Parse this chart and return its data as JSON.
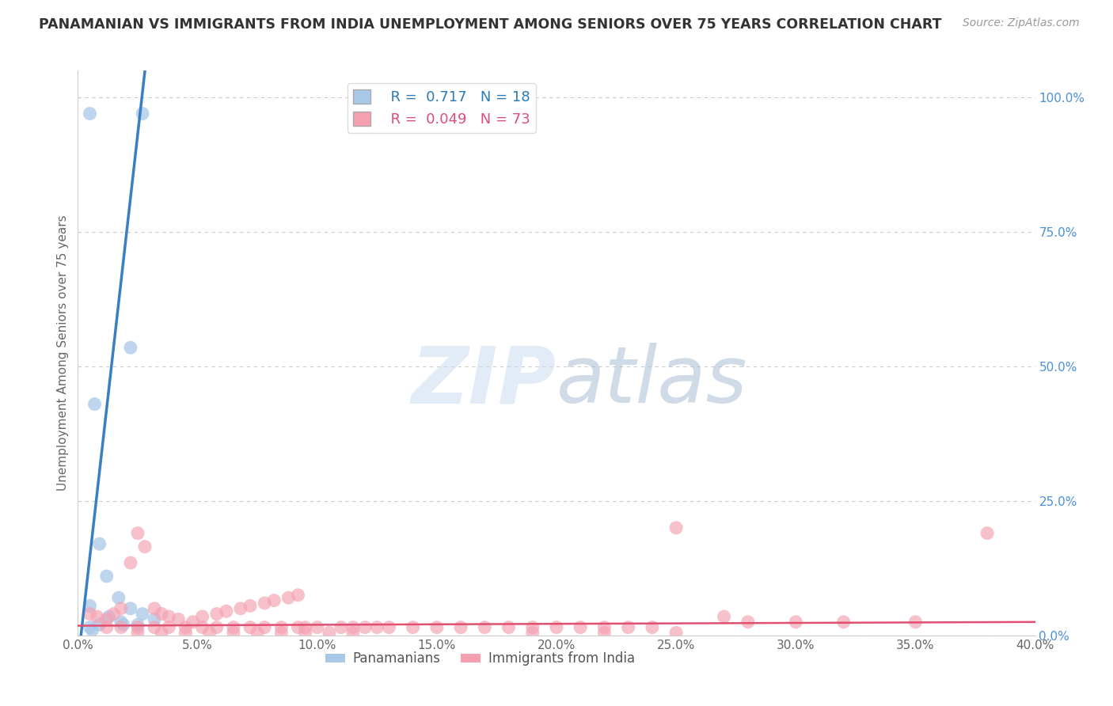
{
  "title": "PANAMANIAN VS IMMIGRANTS FROM INDIA UNEMPLOYMENT AMONG SENIORS OVER 75 YEARS CORRELATION CHART",
  "source": "Source: ZipAtlas.com",
  "ylabel": "Unemployment Among Seniors over 75 years",
  "xlim": [
    0.0,
    0.4
  ],
  "ylim": [
    0.0,
    1.05
  ],
  "xtick_vals": [
    0.0,
    0.05,
    0.1,
    0.15,
    0.2,
    0.25,
    0.3,
    0.35,
    0.4
  ],
  "ytick_right_vals": [
    0.0,
    0.25,
    0.5,
    0.75,
    1.0
  ],
  "blue_scatter_x": [
    0.022,
    0.027,
    0.005,
    0.005,
    0.009,
    0.012,
    0.017,
    0.022,
    0.027,
    0.032,
    0.009,
    0.005,
    0.006,
    0.007,
    0.013,
    0.018,
    0.019,
    0.025
  ],
  "blue_scatter_y": [
    0.535,
    0.97,
    0.97,
    0.055,
    0.17,
    0.11,
    0.07,
    0.05,
    0.04,
    0.03,
    0.02,
    0.015,
    0.01,
    0.43,
    0.035,
    0.025,
    0.02,
    0.02
  ],
  "pink_scatter_x": [
    0.005,
    0.008,
    0.012,
    0.015,
    0.018,
    0.022,
    0.025,
    0.028,
    0.032,
    0.035,
    0.038,
    0.042,
    0.048,
    0.052,
    0.058,
    0.062,
    0.068,
    0.072,
    0.078,
    0.082,
    0.088,
    0.092,
    0.012,
    0.018,
    0.025,
    0.032,
    0.038,
    0.045,
    0.052,
    0.058,
    0.065,
    0.072,
    0.078,
    0.085,
    0.092,
    0.095,
    0.1,
    0.11,
    0.115,
    0.12,
    0.125,
    0.13,
    0.14,
    0.15,
    0.16,
    0.17,
    0.18,
    0.19,
    0.2,
    0.21,
    0.22,
    0.23,
    0.24,
    0.25,
    0.27,
    0.28,
    0.3,
    0.32,
    0.35,
    0.38,
    0.025,
    0.035,
    0.045,
    0.055,
    0.065,
    0.075,
    0.085,
    0.095,
    0.105,
    0.115,
    0.19,
    0.22,
    0.25
  ],
  "pink_scatter_y": [
    0.04,
    0.035,
    0.03,
    0.04,
    0.05,
    0.135,
    0.19,
    0.165,
    0.05,
    0.04,
    0.035,
    0.03,
    0.025,
    0.035,
    0.04,
    0.045,
    0.05,
    0.055,
    0.06,
    0.065,
    0.07,
    0.075,
    0.015,
    0.015,
    0.015,
    0.015,
    0.015,
    0.015,
    0.015,
    0.015,
    0.015,
    0.015,
    0.015,
    0.015,
    0.015,
    0.015,
    0.015,
    0.015,
    0.015,
    0.015,
    0.015,
    0.015,
    0.015,
    0.015,
    0.015,
    0.015,
    0.015,
    0.015,
    0.015,
    0.015,
    0.015,
    0.015,
    0.015,
    0.2,
    0.035,
    0.025,
    0.025,
    0.025,
    0.025,
    0.19,
    0.005,
    0.005,
    0.005,
    0.005,
    0.005,
    0.005,
    0.005,
    0.005,
    0.005,
    0.005,
    0.005,
    0.005,
    0.005
  ],
  "blue_line_x": [
    0.0,
    0.028
  ],
  "blue_line_y": [
    -0.05,
    1.05
  ],
  "pink_line_x": [
    0.0,
    0.4
  ],
  "pink_line_y": [
    0.018,
    0.025
  ],
  "blue_color": "#a8c8e8",
  "pink_color": "#f4a0b0",
  "blue_line_color": "#3a7fc1",
  "pink_line_color": "#e05070",
  "legend_blue_R": "0.717",
  "legend_blue_N": "18",
  "legend_pink_R": "0.049",
  "legend_pink_N": "73",
  "watermark_zip": "ZIP",
  "watermark_atlas": "atlas",
  "background_color": "#ffffff",
  "grid_color": "#cccccc",
  "title_fontsize": 12.5,
  "source_fontsize": 10,
  "tick_fontsize": 11,
  "ylabel_fontsize": 11
}
